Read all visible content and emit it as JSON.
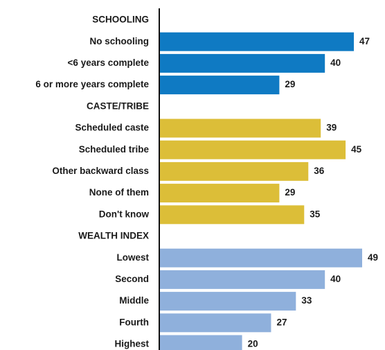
{
  "chart_data": {
    "type": "bar",
    "orientation": "horizontal",
    "title": "",
    "xlabel": "",
    "ylabel": "",
    "xlim": [
      0,
      49
    ],
    "grid": false,
    "legend": "none",
    "groups": [
      {
        "name": "SCHOOLING",
        "color": "#0f7ac3",
        "categories": [
          "No schooling",
          "<6 years complete",
          "6 or more years complete"
        ],
        "values": [
          47,
          40,
          29
        ]
      },
      {
        "name": "CASTE/TRIBE",
        "color": "#dcbe38",
        "categories": [
          "Scheduled caste",
          "Scheduled tribe",
          "Other backward class",
          "None of them",
          "Don't know"
        ],
        "values": [
          39,
          45,
          36,
          29,
          35
        ]
      },
      {
        "name": "WEALTH INDEX",
        "color": "#8fb0dc",
        "categories": [
          "Lowest",
          "Second",
          "Middle",
          "Fourth",
          "Highest"
        ],
        "values": [
          49,
          40,
          33,
          27,
          20
        ]
      }
    ]
  }
}
